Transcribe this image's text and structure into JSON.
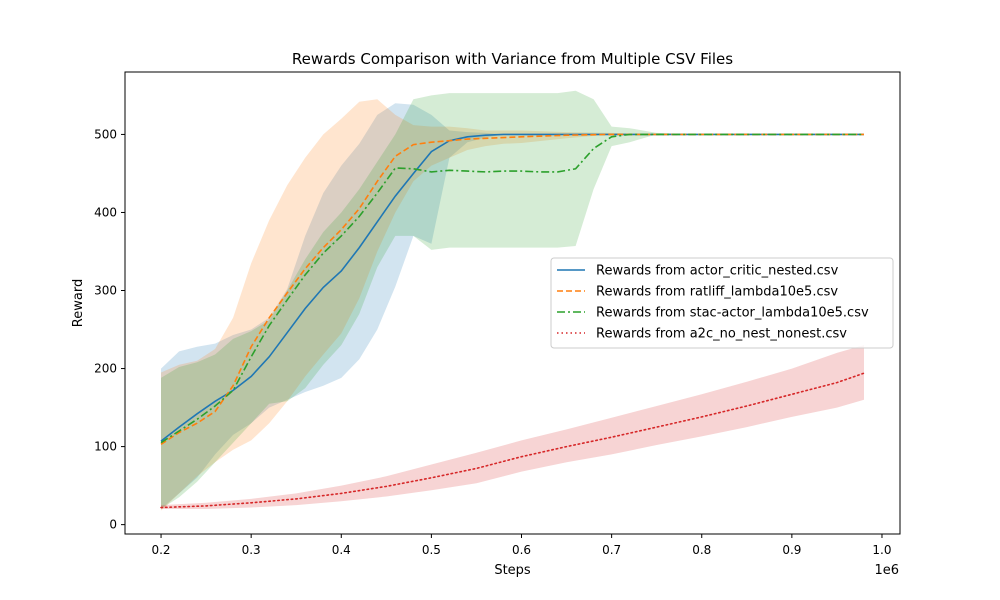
{
  "chart_data": {
    "type": "line",
    "title": "Rewards Comparison with Variance from Multiple CSV Files",
    "xlabel": "Steps",
    "ylabel": "Reward",
    "x_offset_label": "1e6",
    "xlim": [
      0.16,
      1.02
    ],
    "ylim": [
      -12,
      580
    ],
    "xticks": [
      0.2,
      0.3,
      0.4,
      0.5,
      0.6,
      0.7,
      0.8,
      0.9,
      1.0
    ],
    "xtick_labels": [
      "0.2",
      "0.3",
      "0.4",
      "0.5",
      "0.6",
      "0.7",
      "0.8",
      "0.9",
      "1.0"
    ],
    "yticks": [
      0,
      100,
      200,
      300,
      400,
      500
    ],
    "ytick_labels": [
      "0",
      "100",
      "200",
      "300",
      "400",
      "500"
    ],
    "grid": false,
    "legend_position": "center-right",
    "series": [
      {
        "name": "Rewards from actor_critic_nested.csv",
        "color": "#1f77b4",
        "dash": "solid",
        "x": [
          0.2,
          0.22,
          0.24,
          0.26,
          0.28,
          0.3,
          0.32,
          0.34,
          0.36,
          0.38,
          0.4,
          0.42,
          0.44,
          0.46,
          0.48,
          0.5,
          0.52,
          0.54,
          0.56,
          0.58,
          0.6,
          0.65,
          0.7,
          0.75,
          0.8,
          0.9,
          0.98
        ],
        "values": [
          107,
          125,
          142,
          158,
          172,
          190,
          215,
          246,
          277,
          304,
          325,
          355,
          388,
          421,
          450,
          478,
          492,
          497,
          499,
          500,
          500,
          500,
          500,
          500,
          500,
          500,
          500
        ],
        "upper": [
          200,
          222,
          228,
          232,
          243,
          250,
          265,
          302,
          370,
          425,
          460,
          488,
          525,
          540,
          538,
          525,
          505,
          503,
          502,
          500,
          500,
          500,
          500,
          500,
          500,
          500,
          500
        ],
        "lower": [
          20,
          40,
          60,
          90,
          115,
          130,
          150,
          160,
          170,
          178,
          188,
          212,
          250,
          305,
          370,
          360,
          470,
          490,
          496,
          500,
          500,
          500,
          500,
          500,
          500,
          500,
          500
        ]
      },
      {
        "name": "Rewards from ratliff_lambda10e5.csv",
        "color": "#ff7f0e",
        "dash": "dashed",
        "x": [
          0.2,
          0.22,
          0.24,
          0.26,
          0.28,
          0.3,
          0.32,
          0.34,
          0.36,
          0.38,
          0.4,
          0.42,
          0.44,
          0.46,
          0.48,
          0.5,
          0.52,
          0.54,
          0.56,
          0.58,
          0.6,
          0.65,
          0.7,
          0.75,
          0.8,
          0.9,
          0.98
        ],
        "values": [
          103,
          118,
          130,
          145,
          178,
          228,
          265,
          297,
          328,
          355,
          378,
          405,
          440,
          472,
          487,
          490,
          492,
          494,
          495,
          496,
          497,
          499,
          500,
          500,
          500,
          500,
          500
        ],
        "upper": [
          195,
          205,
          210,
          225,
          265,
          335,
          390,
          435,
          470,
          500,
          520,
          542,
          545,
          525,
          512,
          510,
          510,
          508,
          505,
          505,
          505,
          503,
          502,
          500,
          500,
          500,
          500
        ],
        "lower": [
          18,
          40,
          62,
          80,
          96,
          108,
          130,
          158,
          190,
          218,
          245,
          290,
          350,
          400,
          440,
          460,
          470,
          480,
          485,
          488,
          489,
          495,
          500,
          500,
          500,
          500,
          500
        ]
      },
      {
        "name": "Rewards from stac-actor_lambda10e5.csv",
        "color": "#2ca02c",
        "dash": "dashdot",
        "x": [
          0.2,
          0.22,
          0.24,
          0.26,
          0.28,
          0.3,
          0.32,
          0.34,
          0.36,
          0.38,
          0.4,
          0.42,
          0.44,
          0.46,
          0.48,
          0.5,
          0.52,
          0.54,
          0.56,
          0.58,
          0.6,
          0.62,
          0.64,
          0.66,
          0.68,
          0.7,
          0.72,
          0.75,
          0.8,
          0.9,
          0.98
        ],
        "values": [
          105,
          120,
          135,
          152,
          172,
          215,
          255,
          288,
          320,
          348,
          370,
          395,
          425,
          457,
          456,
          452,
          454,
          453,
          452,
          453,
          453,
          452,
          452,
          456,
          482,
          497,
          500,
          500,
          500,
          500,
          500
        ],
        "upper": [
          188,
          202,
          208,
          218,
          238,
          248,
          262,
          300,
          340,
          375,
          400,
          430,
          465,
          500,
          545,
          550,
          553,
          553,
          553,
          553,
          553,
          553,
          553,
          556,
          545,
          510,
          508,
          502,
          500,
          500,
          500
        ],
        "lower": [
          20,
          35,
          55,
          80,
          105,
          130,
          155,
          158,
          175,
          205,
          230,
          270,
          330,
          370,
          370,
          352,
          355,
          355,
          355,
          355,
          355,
          355,
          355,
          357,
          430,
          485,
          490,
          500,
          500,
          500,
          500
        ]
      },
      {
        "name": "Rewards from a2c_no_nest_nonest.csv",
        "color": "#d62728",
        "dash": "dotted",
        "x": [
          0.2,
          0.25,
          0.3,
          0.35,
          0.4,
          0.45,
          0.5,
          0.55,
          0.6,
          0.65,
          0.7,
          0.75,
          0.8,
          0.85,
          0.9,
          0.95,
          0.98
        ],
        "values": [
          22,
          24,
          28,
          33,
          40,
          49,
          60,
          72,
          87,
          100,
          112,
          125,
          138,
          152,
          167,
          182,
          194
        ],
        "upper": [
          25,
          28,
          33,
          40,
          50,
          62,
          77,
          92,
          108,
          122,
          137,
          152,
          167,
          183,
          200,
          220,
          230
        ],
        "lower": [
          20,
          20,
          22,
          25,
          30,
          36,
          44,
          53,
          68,
          80,
          90,
          102,
          113,
          125,
          138,
          150,
          160
        ]
      }
    ]
  }
}
